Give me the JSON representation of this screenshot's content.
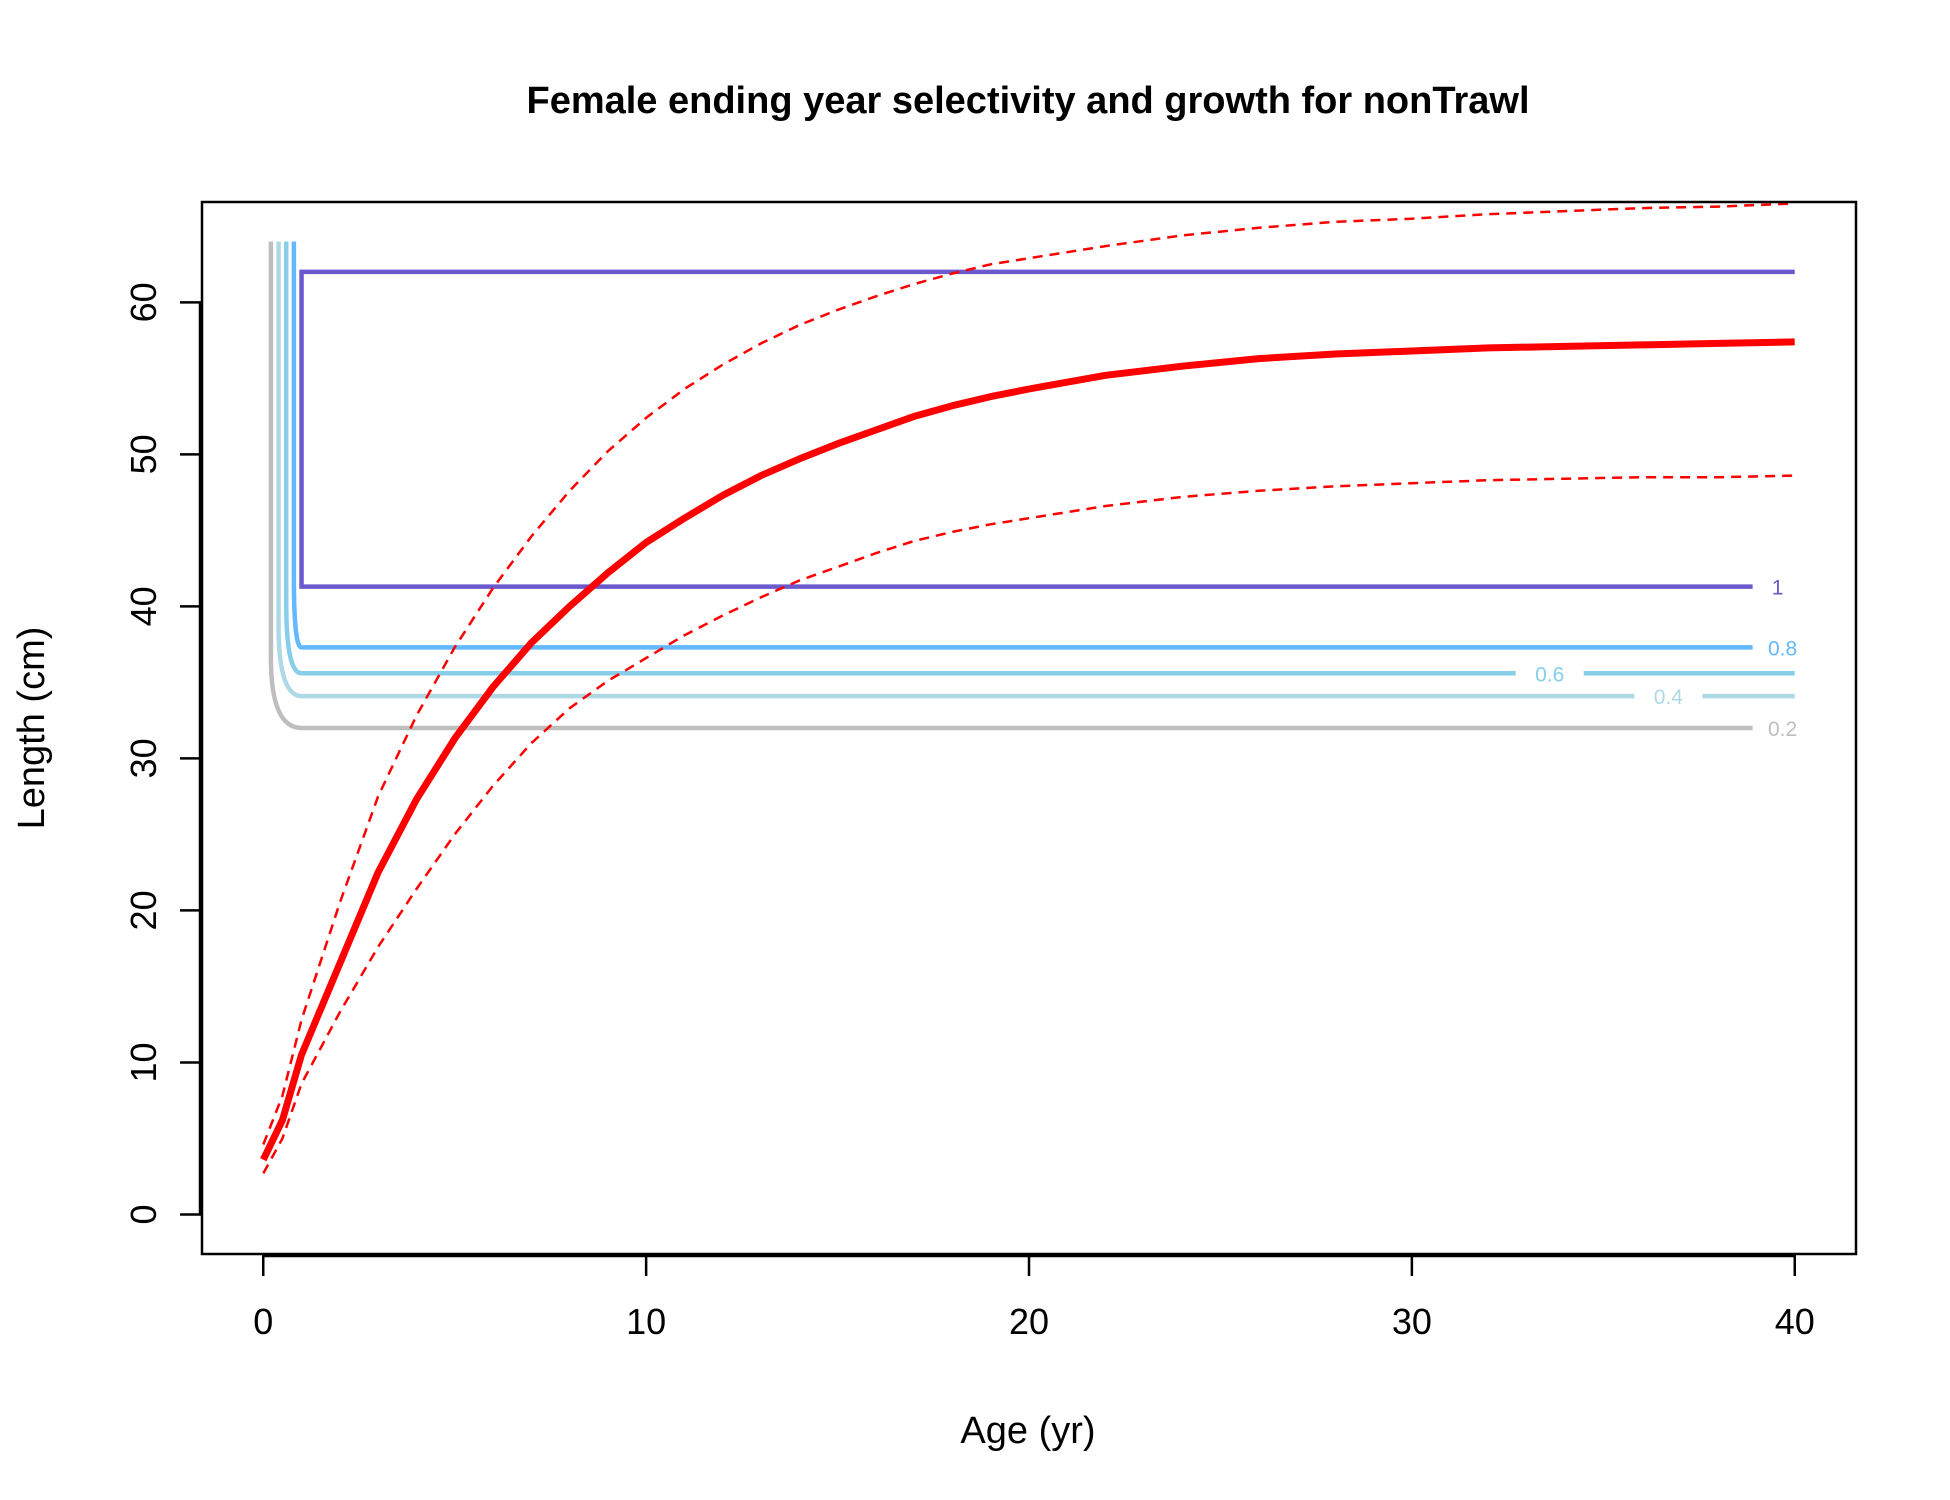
{
  "chart_data": {
    "type": "line",
    "title": "Female ending year selectivity and growth for nonTrawl",
    "xlabel": "Age (yr)",
    "ylabel": "Length (cm)",
    "xlim": [
      -1.6,
      41.6
    ],
    "ylim": [
      -2.6,
      66.6
    ],
    "x_ticks": [
      0,
      10,
      20,
      30,
      40
    ],
    "y_ticks": [
      0,
      10,
      20,
      30,
      40,
      50,
      60
    ],
    "grid": false,
    "legend": "none",
    "growth": {
      "color": "#ff0000",
      "mean": {
        "x": [
          0,
          0.5,
          1,
          2,
          3,
          4,
          5,
          6,
          7,
          8,
          9,
          10,
          11,
          12,
          13,
          14,
          15,
          16,
          17,
          18,
          19,
          20,
          22,
          24,
          26,
          28,
          30,
          32,
          34,
          36,
          38,
          40
        ],
        "y": [
          3.6,
          6.2,
          10.5,
          16.5,
          22.5,
          27.3,
          31.3,
          34.7,
          37.6,
          40.0,
          42.2,
          44.2,
          45.8,
          47.3,
          48.6,
          49.7,
          50.7,
          51.6,
          52.5,
          53.2,
          53.8,
          54.3,
          55.2,
          55.8,
          56.3,
          56.6,
          56.8,
          57.0,
          57.1,
          57.2,
          57.3,
          57.4
        ]
      },
      "upper": {
        "x": [
          0,
          0.5,
          1,
          2,
          3,
          4,
          5,
          6,
          7,
          8,
          9,
          10,
          11,
          12,
          13,
          14,
          15,
          16,
          17,
          18,
          19,
          20,
          22,
          24,
          26,
          28,
          30,
          32,
          34,
          36,
          38,
          40
        ],
        "y": [
          4.6,
          7.8,
          12.8,
          20.5,
          27.5,
          32.8,
          37.3,
          41.2,
          44.6,
          47.6,
          50.2,
          52.4,
          54.3,
          55.9,
          57.3,
          58.5,
          59.5,
          60.4,
          61.2,
          61.9,
          62.5,
          62.9,
          63.7,
          64.4,
          64.9,
          65.3,
          65.5,
          65.8,
          66.0,
          66.2,
          66.3,
          66.5
        ]
      },
      "lower": {
        "x": [
          0,
          0.5,
          1,
          2,
          3,
          4,
          5,
          6,
          7,
          8,
          9,
          10,
          11,
          12,
          13,
          14,
          15,
          16,
          17,
          18,
          19,
          20,
          22,
          24,
          26,
          28,
          30,
          32,
          34,
          36,
          38,
          40
        ],
        "y": [
          2.7,
          5.0,
          8.6,
          13.3,
          17.6,
          21.4,
          25.0,
          28.2,
          31.0,
          33.3,
          35.1,
          36.6,
          38.1,
          39.4,
          40.6,
          41.7,
          42.6,
          43.5,
          44.3,
          44.9,
          45.4,
          45.8,
          46.6,
          47.2,
          47.6,
          47.9,
          48.1,
          48.3,
          48.4,
          48.5,
          48.5,
          48.6
        ]
      }
    },
    "selectivity_contours": [
      {
        "level": "0.2",
        "color": "#bebebe",
        "x_left": 0.2,
        "x_right": 1.0,
        "y_low": 32.0,
        "y_high": 64.0,
        "x_end": 38.9,
        "label": "0.2",
        "label_x": 39.3
      },
      {
        "level": "0.4",
        "color": "#add8e6",
        "x_left": 0.4,
        "x_right": 1.0,
        "y_low": 34.1,
        "y_high": 64.0,
        "x_end": 40.0,
        "label": "0.4",
        "label_x": 36.7,
        "label_gap": true
      },
      {
        "level": "0.6",
        "color": "#87ceeb",
        "x_left": 0.6,
        "x_right": 1.0,
        "y_low": 35.6,
        "y_high": 64.0,
        "x_end": 40.0,
        "label": "0.6",
        "label_x": 33.6,
        "label_gap": true
      },
      {
        "level": "0.8",
        "color": "#63b8ff",
        "x_left": 0.8,
        "x_right": 1.0,
        "y_low": 37.3,
        "y_high": 64.0,
        "x_end": 38.9,
        "label": "0.8",
        "label_x": 39.3
      },
      {
        "level": "1",
        "color": "#6a5acd",
        "box": true,
        "x_left": 1.0,
        "x_right": 40.0,
        "y_low": 41.3,
        "y_high": 62.0,
        "x_end": 38.9,
        "label": "1",
        "label_x": 39.4
      }
    ]
  }
}
